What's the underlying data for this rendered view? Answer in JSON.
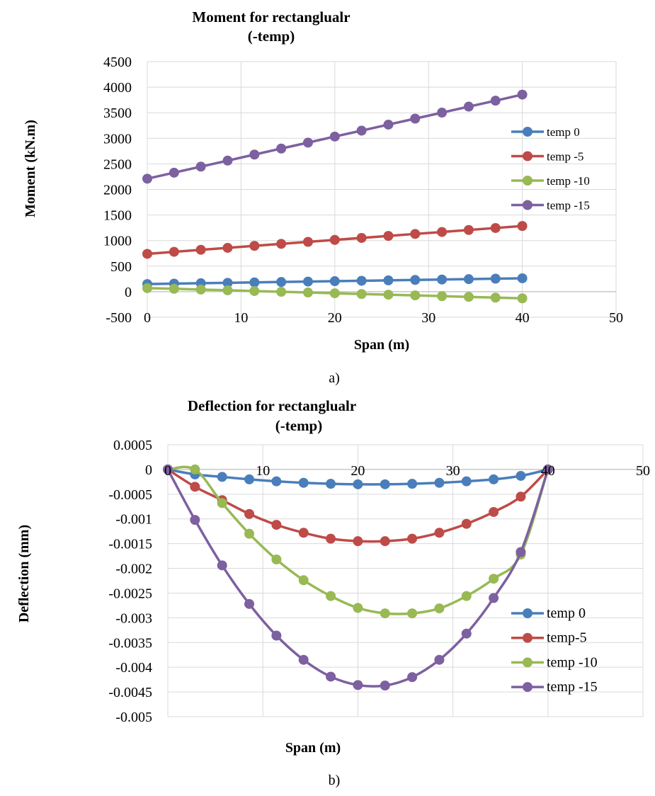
{
  "chart_data": [
    {
      "type": "line",
      "title_lines": [
        "Moment for rectanglualr",
        "(-temp)"
      ],
      "xlabel": "Span (m)",
      "ylabel": "Moment  (kN.m)",
      "xlim": [
        0,
        50
      ],
      "ylim": [
        -500,
        4500
      ],
      "x_ticks": [
        "0",
        "10",
        "20",
        "30",
        "40",
        "50"
      ],
      "y_ticks": [
        "4500",
        "4000",
        "3500",
        "3000",
        "2500",
        "2000",
        "1500",
        "1000",
        "500",
        "0",
        "-500"
      ],
      "grid": true,
      "legend_position": "right",
      "caption": "a)",
      "x": [
        0,
        2.857,
        5.714,
        8.571,
        11.429,
        14.286,
        17.143,
        20,
        22.857,
        25.714,
        28.571,
        31.429,
        34.286,
        37.143,
        40
      ],
      "series": [
        {
          "name": "temp 0",
          "color": "#4a7ebb",
          "values": [
            150,
            158,
            166,
            174,
            182,
            190,
            198,
            206,
            214,
            222,
            230,
            238,
            246,
            254,
            262
          ]
        },
        {
          "name": "temp -5",
          "color": "#be4b48",
          "values": [
            740,
            780,
            820,
            858,
            897,
            936,
            975,
            1013,
            1052,
            1091,
            1130,
            1168,
            1207,
            1246,
            1285
          ]
        },
        {
          "name": "temp -10",
          "color": "#98b954",
          "values": [
            70,
            57,
            42,
            28,
            13,
            -2,
            -16,
            -30,
            -45,
            -58,
            -72,
            -87,
            -101,
            -116,
            -130
          ]
        },
        {
          "name": "temp -15",
          "color": "#7d60a0",
          "values": [
            2210,
            2328,
            2446,
            2564,
            2682,
            2800,
            2916,
            3034,
            3150,
            3268,
            3385,
            3502,
            3620,
            3736,
            3855
          ]
        }
      ]
    },
    {
      "type": "line",
      "title_lines": [
        "Deflection for rectanglualr",
        "(-temp)"
      ],
      "xlabel": "Span (m)",
      "ylabel": "Deflection (mm)",
      "xlim": [
        0,
        50
      ],
      "ylim": [
        -0.005,
        0.0005
      ],
      "x_ticks": [
        "0",
        "10",
        "20",
        "30",
        "40",
        "50"
      ],
      "y_ticks": [
        "0.0005",
        "0",
        "-0.0005",
        "-0.001",
        "-0.0015",
        "-0.002",
        "-0.0025",
        "-0.003",
        "-0.0035",
        "-0.004",
        "-0.0045",
        "-0.005"
      ],
      "grid": true,
      "legend_position": "bottom-right",
      "caption": "b)",
      "x": [
        0,
        2.857,
        5.714,
        8.571,
        11.429,
        14.286,
        17.143,
        20,
        22.857,
        25.714,
        28.571,
        31.429,
        34.286,
        37.143,
        40
      ],
      "series": [
        {
          "name": "temp 0",
          "color": "#4a7ebb",
          "values": [
            0,
            -0.0001,
            -0.00015,
            -0.0002,
            -0.00024,
            -0.00027,
            -0.00029,
            -0.0003,
            -0.0003,
            -0.00029,
            -0.00027,
            -0.00024,
            -0.0002,
            -0.00013,
            0
          ]
        },
        {
          "name": "temp-5",
          "color": "#be4b48",
          "values": [
            0,
            -0.00035,
            -0.00062,
            -0.0009,
            -0.00112,
            -0.00128,
            -0.0014,
            -0.00145,
            -0.00145,
            -0.0014,
            -0.00128,
            -0.0011,
            -0.00086,
            -0.00055,
            0
          ]
        },
        {
          "name": "temp -10",
          "color": "#98b954",
          "values": [
            0,
            0,
            -0.00068,
            -0.0013,
            -0.00182,
            -0.00224,
            -0.00256,
            -0.0028,
            -0.00291,
            -0.00291,
            -0.00281,
            -0.00256,
            -0.00221,
            -0.00172,
            0
          ]
        },
        {
          "name": "temp -15",
          "color": "#7d60a0",
          "values": [
            0,
            -0.00102,
            -0.00194,
            -0.00272,
            -0.00336,
            -0.00385,
            -0.00419,
            -0.00436,
            -0.00437,
            -0.0042,
            -0.00385,
            -0.00332,
            -0.0026,
            -0.00167,
            0
          ]
        }
      ]
    }
  ]
}
